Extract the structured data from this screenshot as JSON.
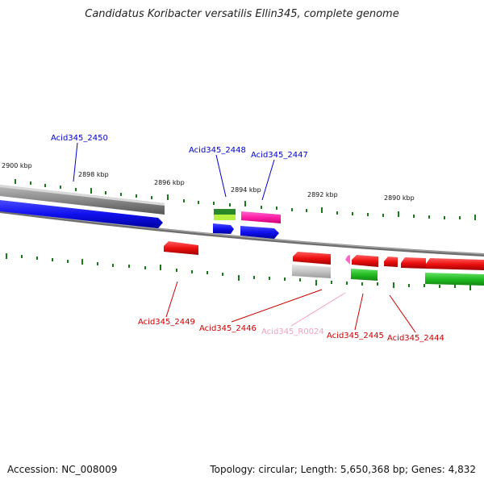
{
  "title": "Candidatus Koribacter versatilis Ellin345, complete genome",
  "footer": {
    "accession": "Accession: NC_008009",
    "topology": "Topology: circular; Length: 5,650,368 bp; Genes: 4,832"
  },
  "scale_labels": [
    "2900 kbp",
    "2898 kbp",
    "2896 kbp",
    "2894 kbp",
    "2892 kbp",
    "2890 kbp"
  ],
  "genes_top": [
    {
      "label": "Acid345_2450",
      "color": "#0000cc"
    },
    {
      "label": "Acid345_2448",
      "color": "#0000cc"
    },
    {
      "label": "Acid345_2447",
      "color": "#0000cc"
    }
  ],
  "genes_bottom": [
    {
      "label": "Acid345_2449",
      "color": "#cc0000"
    },
    {
      "label": "Acid345_2446",
      "color": "#cc0000"
    },
    {
      "label": "Acid345_R0024",
      "color": "#f4a0c0"
    },
    {
      "label": "Acid345_2445",
      "color": "#cc0000"
    },
    {
      "label": "Acid345_2444",
      "color": "#cc0000"
    }
  ]
}
